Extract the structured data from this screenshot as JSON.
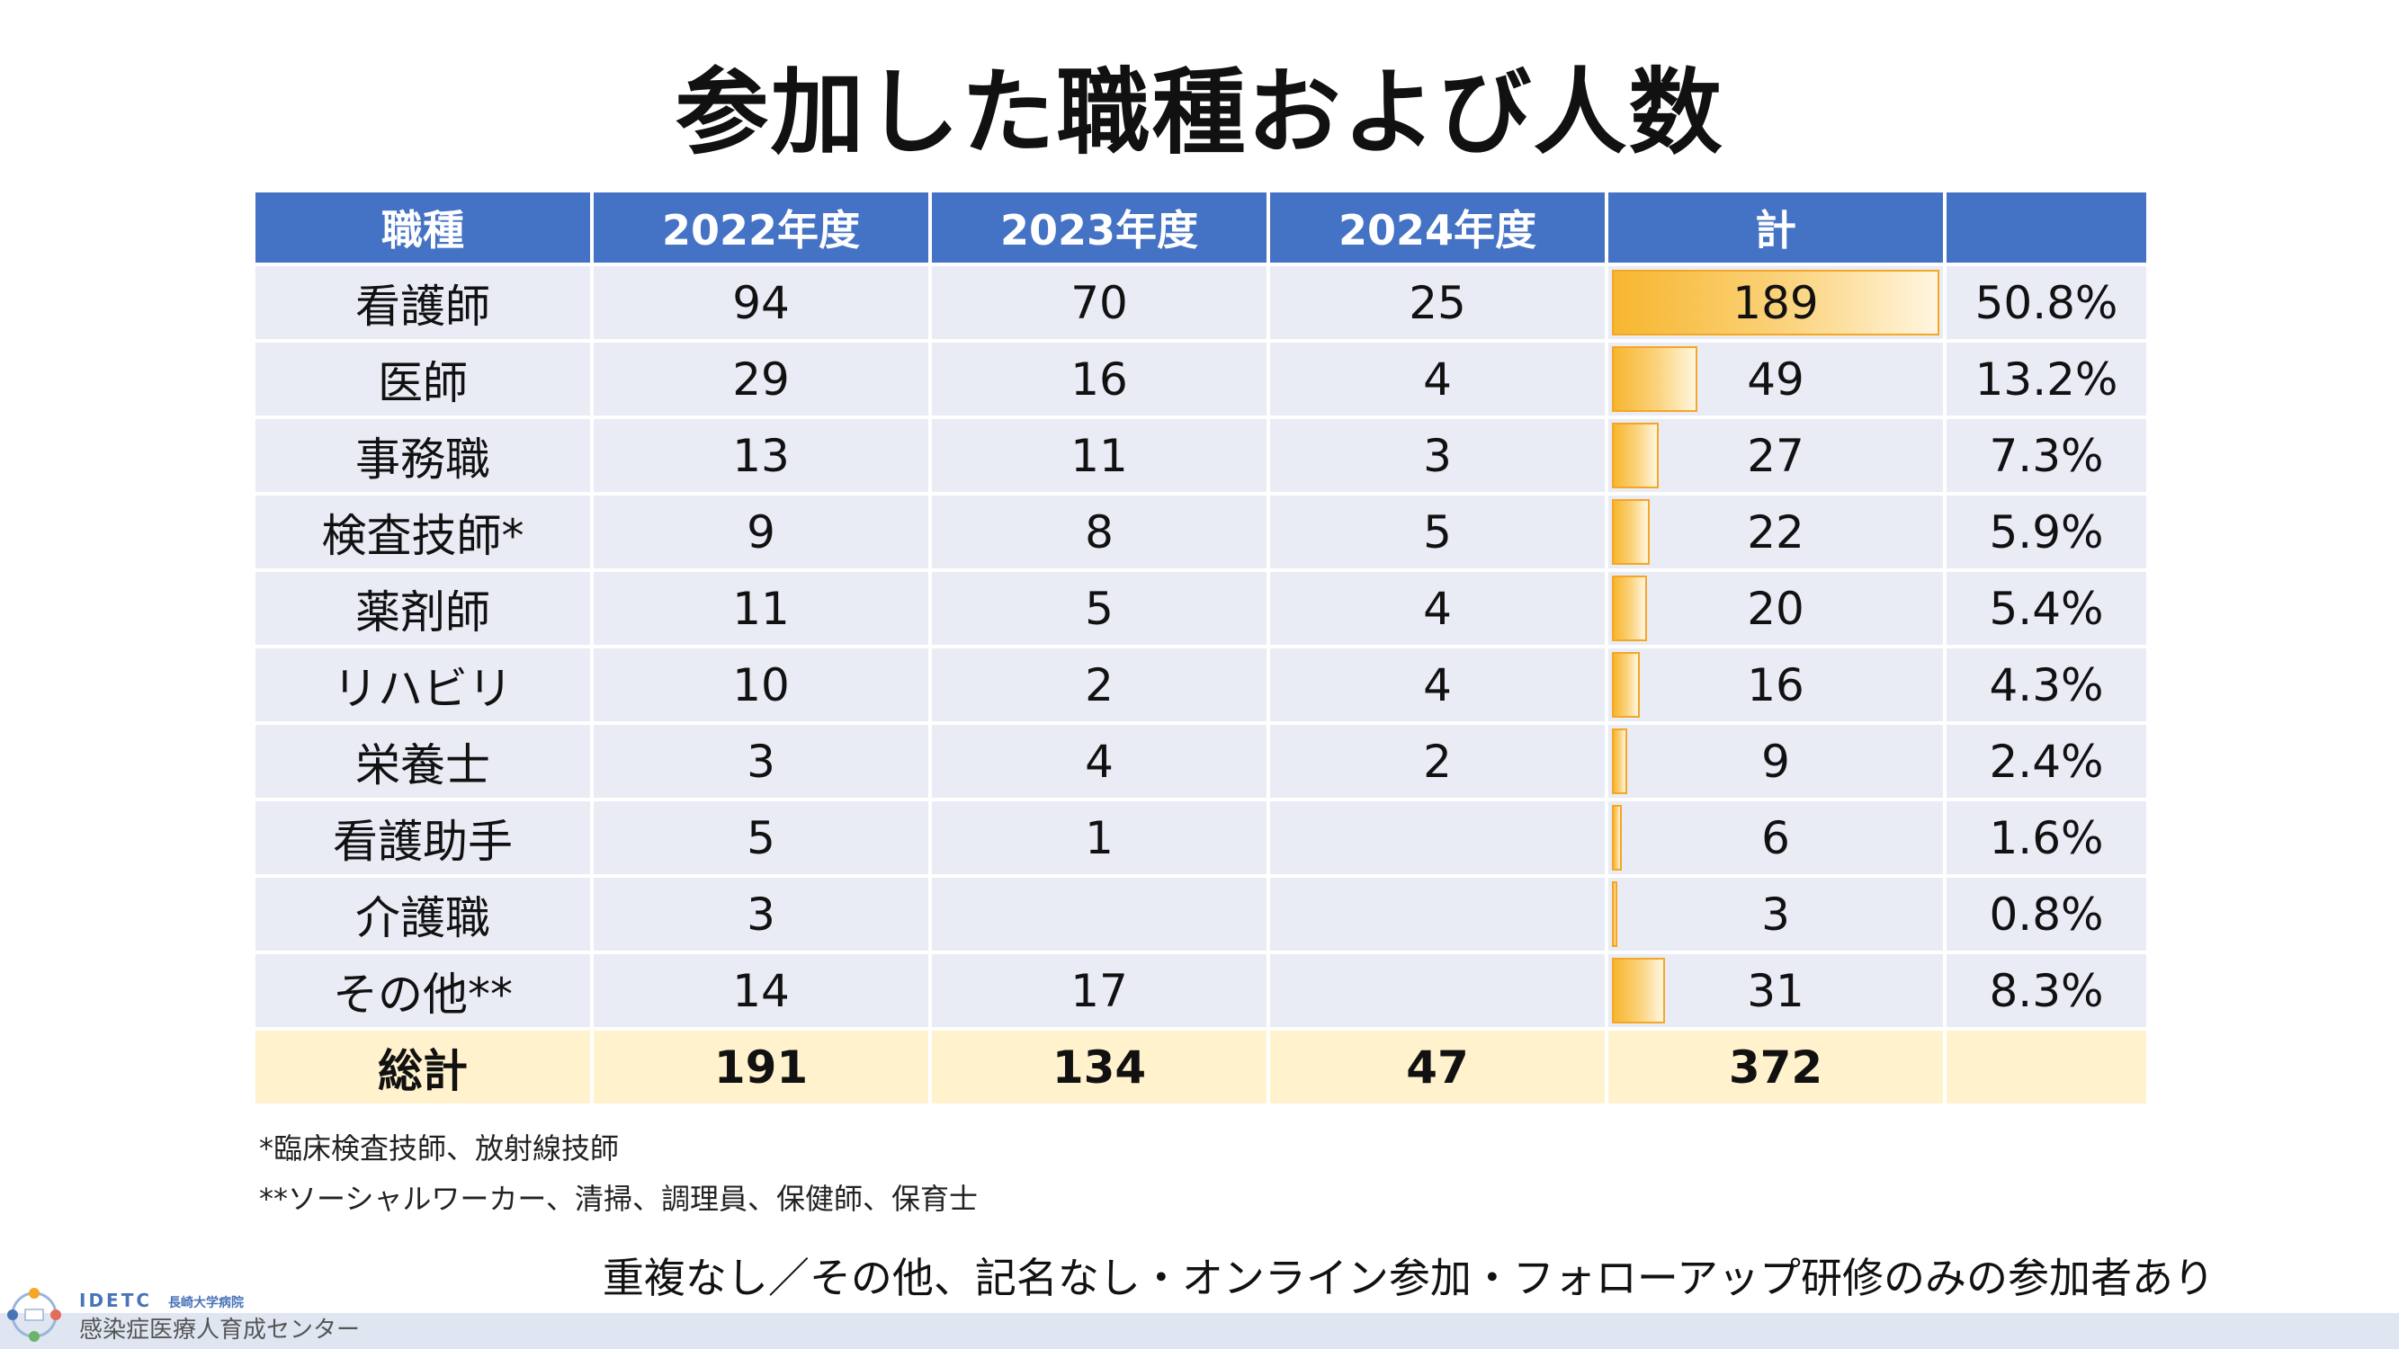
{
  "title": "参加した職種および人数",
  "table": {
    "headers": [
      "職種",
      "2022年度",
      "2023年度",
      "2024年度",
      "計",
      ""
    ],
    "rows": [
      {
        "job": "看護師",
        "y2022": "94",
        "y2023": "70",
        "y2024": "25",
        "total": "189",
        "pct": "50.8%",
        "share": 0.508
      },
      {
        "job": "医師",
        "y2022": "29",
        "y2023": "16",
        "y2024": "4",
        "total": "49",
        "pct": "13.2%",
        "share": 0.132
      },
      {
        "job": "事務職",
        "y2022": "13",
        "y2023": "11",
        "y2024": "3",
        "total": "27",
        "pct": "7.3%",
        "share": 0.073
      },
      {
        "job": "検査技師*",
        "y2022": "9",
        "y2023": "8",
        "y2024": "5",
        "total": "22",
        "pct": "5.9%",
        "share": 0.059
      },
      {
        "job": "薬剤師",
        "y2022": "11",
        "y2023": "5",
        "y2024": "4",
        "total": "20",
        "pct": "5.4%",
        "share": 0.054
      },
      {
        "job": "リハビリ",
        "y2022": "10",
        "y2023": "2",
        "y2024": "4",
        "total": "16",
        "pct": "4.3%",
        "share": 0.043
      },
      {
        "job": "栄養士",
        "y2022": "3",
        "y2023": "4",
        "y2024": "2",
        "total": "9",
        "pct": "2.4%",
        "share": 0.024
      },
      {
        "job": "看護助手",
        "y2022": "5",
        "y2023": "1",
        "y2024": "",
        "total": "6",
        "pct": "1.6%",
        "share": 0.016
      },
      {
        "job": "介護職",
        "y2022": "3",
        "y2023": "",
        "y2024": "",
        "total": "3",
        "pct": "0.8%",
        "share": 0.008
      },
      {
        "job": "その他**",
        "y2022": "14",
        "y2023": "17",
        "y2024": "",
        "total": "31",
        "pct": "8.3%",
        "share": 0.083
      }
    ],
    "total_row": {
      "label": "総計",
      "y2022": "191",
      "y2023": "134",
      "y2024": "47",
      "total": "372",
      "pct": ""
    }
  },
  "notes": {
    "note1": "*臨床検査技師、放射線技師",
    "note2": "**ソーシャルワーカー、清掃、調理員、保健師、保育士"
  },
  "summary": "重複なし／その他、記名なし・オンライン参加・フォローアップ研修のみの参加者あり",
  "footer": {
    "org_en": "IDETC",
    "org_sub": "長崎大学病院",
    "org_jp": "感染症医療人育成センター"
  },
  "colors": {
    "header_bg": "#4472c4",
    "row_bg": "#e9ebf5",
    "total_bg": "#fff2cc",
    "bar_color": "#f7b62f"
  }
}
